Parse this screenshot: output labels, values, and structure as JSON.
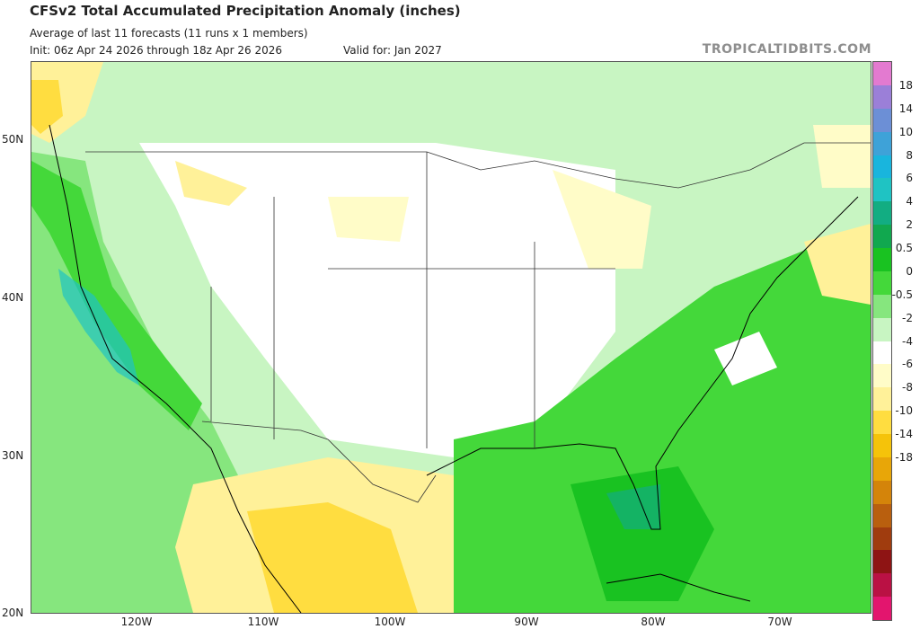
{
  "header": {
    "title": "CFSv2 Total Accumulated Precipitation Anomaly (inches)",
    "subtitle": "Average of last 11 forecasts (11 runs x 1 members)",
    "init": "Init: 06z Apr 24 2026 through 18z Apr 26 2026",
    "valid": "Valid for: Jan 2027",
    "brand": "TROPICALTIDBITS.COM"
  },
  "axes": {
    "lat": [
      {
        "label": "50N"
      },
      {
        "label": "40N"
      },
      {
        "label": "30N"
      },
      {
        "label": "20N"
      }
    ],
    "lon": [
      {
        "label": "120W"
      },
      {
        "label": "110W"
      },
      {
        "label": "100W"
      },
      {
        "label": "90W"
      },
      {
        "label": "80W"
      },
      {
        "label": "70W"
      }
    ]
  },
  "colorbar": {
    "bins": [
      {
        "color": "#e37ad0"
      },
      {
        "color": "#9b7fd8"
      },
      {
        "color": "#6c8fd6"
      },
      {
        "color": "#3ea2d8"
      },
      {
        "color": "#19b5dd"
      },
      {
        "color": "#1fc3c3"
      },
      {
        "color": "#12ad82"
      },
      {
        "color": "#11a84f"
      },
      {
        "color": "#19c221"
      },
      {
        "color": "#44d83a"
      },
      {
        "color": "#86e67e"
      },
      {
        "color": "#c8f5c2"
      },
      {
        "color": "#ffffff"
      },
      {
        "color": "#fffcc8"
      },
      {
        "color": "#fff199"
      },
      {
        "color": "#ffdd40"
      },
      {
        "color": "#f5c30a"
      },
      {
        "color": "#e8a608"
      },
      {
        "color": "#d4840a"
      },
      {
        "color": "#b95f0e"
      },
      {
        "color": "#a03c0e"
      },
      {
        "color": "#8e1414"
      },
      {
        "color": "#ba1144"
      },
      {
        "color": "#e3156e"
      }
    ],
    "labels": [
      "18",
      "14",
      "10",
      "8",
      "6",
      "4",
      "2",
      "0.5",
      "0",
      "-0.5",
      "-2",
      "-4",
      "-6",
      "-8",
      "-10",
      "-14",
      "-18"
    ]
  }
}
